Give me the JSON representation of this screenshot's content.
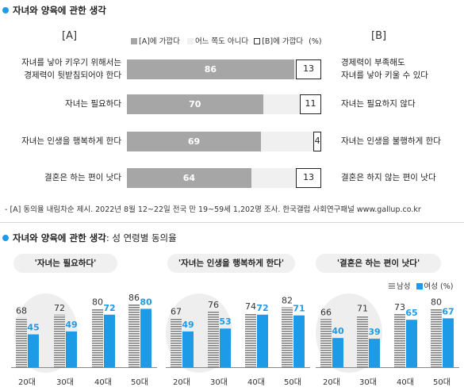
{
  "section1": {
    "title": "자녀와 양육에 관한 생각",
    "header_a": "[A]",
    "header_b": "[B]",
    "legend": {
      "a": "[A]에 가깝다",
      "neither": "어느 쪽도 아니다",
      "b": "[B]에 가깝다",
      "unit": "(%)"
    }
  },
  "section2": {
    "title": "자녀와 양육에 관한 생각",
    "subtitle": ": 성 연령별 동의율",
    "legend": {
      "male": "남성",
      "female": "여성",
      "unit": "(%)"
    }
  },
  "footnote": "- [A] 동의율 내림차순 제시. 2022년 8월 12~22일 전국 만 19~59세 1,202명 조사. 한국갤럽 사회연구패널 www.gallup.co.kr",
  "colors": {
    "accent": "#1d9be6",
    "bar_a": "#a6a6a6",
    "bar_neither": "#f0f0f0",
    "male_stripe": "#7f7f7f",
    "female": "#1d9be6"
  },
  "chart_data": [
    {
      "type": "bar",
      "orientation": "horizontal",
      "stacked": true,
      "xlim": [
        0,
        100
      ],
      "categories": [
        {
          "a_lines": [
            "자녀를 낳아 키우기 위해서는",
            "경제력이 뒷받침되어야 한다"
          ],
          "b_lines": [
            "경제력이 부족해도",
            "자녀를 낳아 키울 수 있다"
          ]
        },
        {
          "a_lines": [
            "자녀는 필요하다"
          ],
          "b_lines": [
            "자녀는 필요하지 않다"
          ]
        },
        {
          "a_lines": [
            "자녀는 인생을 행복하게 한다"
          ],
          "b_lines": [
            "자녀는 인생을 불행하게 한다"
          ]
        },
        {
          "a_lines": [
            "결혼은 하는 편이 낫다"
          ],
          "b_lines": [
            "결혼은 하지 않는 편이 낫다"
          ]
        }
      ],
      "series": [
        {
          "name": "[A]에 가깝다",
          "values": [
            86,
            70,
            69,
            64
          ]
        },
        {
          "name": "어느 쪽도 아니다",
          "values": [
            1,
            19,
            27,
            23
          ]
        },
        {
          "name": "[B]에 가깝다",
          "values": [
            13,
            11,
            4,
            13
          ]
        }
      ]
    },
    {
      "type": "bar",
      "title": "'자녀는 필요하다'",
      "categories": [
        "20대",
        "30대",
        "40대",
        "50대"
      ],
      "series": [
        {
          "name": "남성",
          "values": [
            68,
            72,
            80,
            86
          ]
        },
        {
          "name": "여성",
          "values": [
            45,
            49,
            72,
            80
          ]
        }
      ],
      "ylim": [
        0,
        100
      ]
    },
    {
      "type": "bar",
      "title": "'자녀는 인생을 행복하게 한다'",
      "categories": [
        "20대",
        "30대",
        "40대",
        "50대"
      ],
      "series": [
        {
          "name": "남성",
          "values": [
            67,
            76,
            74,
            82
          ]
        },
        {
          "name": "여성",
          "values": [
            49,
            53,
            72,
            71
          ]
        }
      ],
      "ylim": [
        0,
        100
      ]
    },
    {
      "type": "bar",
      "title": "'결혼은 하는 편이 낫다'",
      "categories": [
        "20대",
        "30대",
        "40대",
        "50대"
      ],
      "series": [
        {
          "name": "남성",
          "values": [
            66,
            71,
            73,
            80
          ]
        },
        {
          "name": "여성",
          "values": [
            40,
            39,
            65,
            67
          ]
        }
      ],
      "ylim": [
        0,
        100
      ]
    }
  ]
}
